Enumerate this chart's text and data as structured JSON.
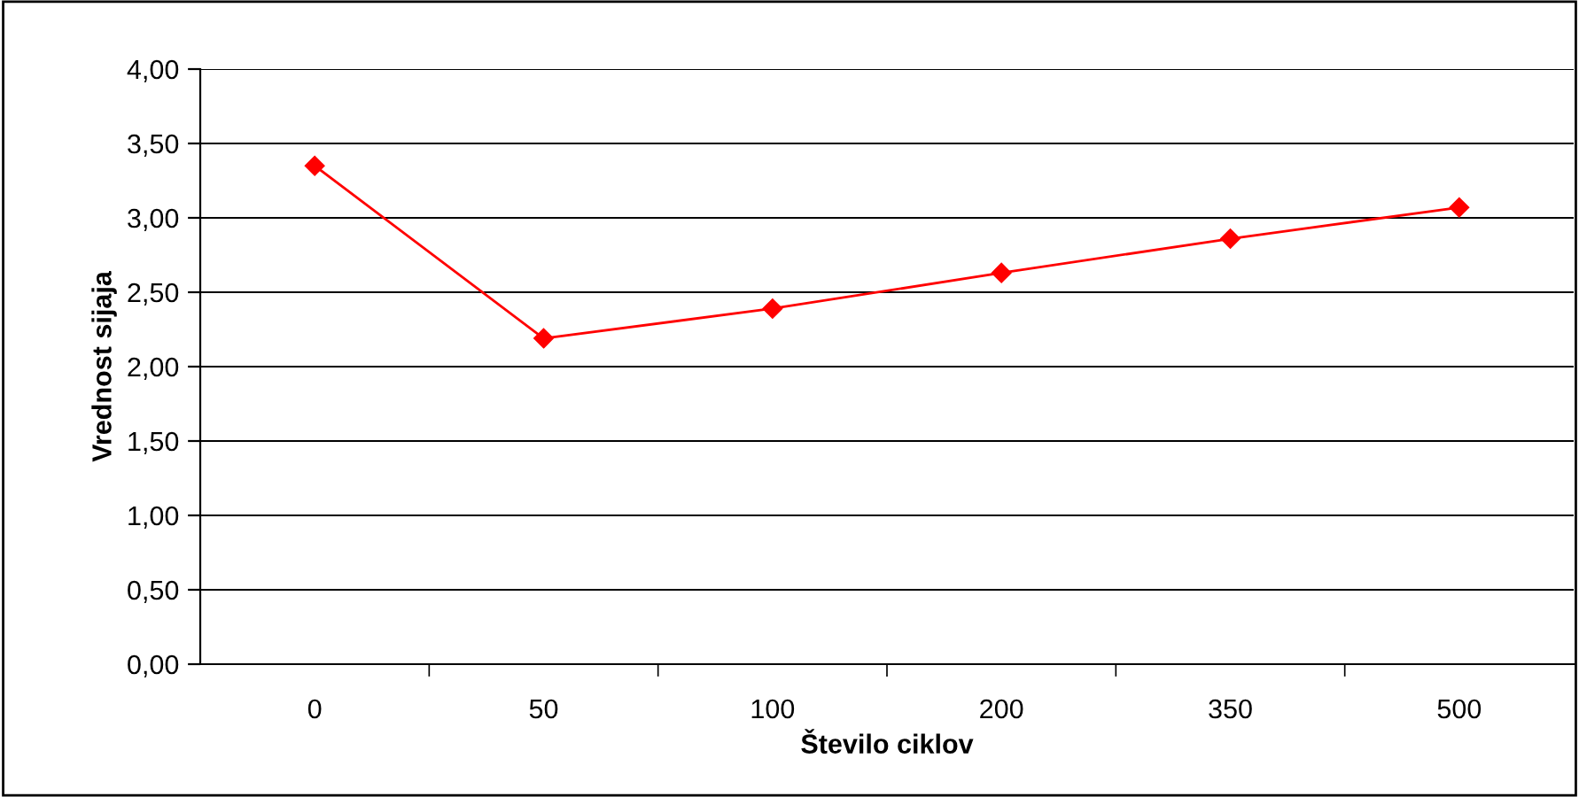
{
  "chart_data": {
    "type": "line",
    "xlabel": "Število ciklov",
    "ylabel": "Vrednost sijaja",
    "categories": [
      "0",
      "50",
      "100",
      "200",
      "350",
      "500"
    ],
    "series": [
      {
        "color": "#ff0000",
        "values": [
          3.35,
          2.19,
          2.39,
          2.63,
          2.86,
          3.07
        ]
      }
    ],
    "ylim": [
      0,
      4
    ],
    "yticks": [
      {
        "value": 0,
        "label": "0,00"
      },
      {
        "value": 0.5,
        "label": "0,50"
      },
      {
        "value": 1,
        "label": "1,00"
      },
      {
        "value": 1.5,
        "label": "1,50"
      },
      {
        "value": 2,
        "label": "2,00"
      },
      {
        "value": 2.5,
        "label": "2,50"
      },
      {
        "value": 3,
        "label": "3,00"
      },
      {
        "value": 3.5,
        "label": "3,50"
      },
      {
        "value": 4,
        "label": "4,00"
      }
    ],
    "grid": "y",
    "marker": "diamond",
    "line_style": "solid",
    "legend": false
  }
}
